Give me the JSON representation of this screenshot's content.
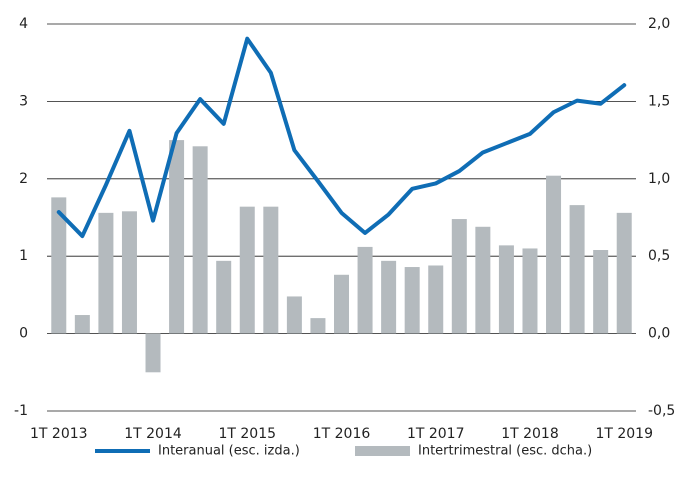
{
  "chart_data": {
    "type": "combo",
    "categories": [
      "1T 2013",
      null,
      null,
      null,
      "1T 2014",
      null,
      null,
      null,
      "1T 2015",
      null,
      null,
      null,
      "1T 2016",
      null,
      null,
      null,
      "1T 2017",
      null,
      null,
      null,
      "1T 2018",
      null,
      null,
      null,
      "1T 2019"
    ],
    "series": [
      {
        "name": "Interanual (esc. izda.)",
        "type": "line",
        "axis": "y",
        "color": "#0f6db5",
        "values": [
          1.57,
          1.26,
          1.92,
          2.62,
          1.46,
          2.59,
          3.03,
          2.71,
          3.81,
          3.37,
          2.37,
          1.97,
          1.56,
          1.3,
          1.54,
          1.87,
          1.94,
          2.1,
          2.34,
          2.46,
          2.58,
          2.86,
          3.01,
          2.97,
          3.21
        ]
      },
      {
        "name": "Intertrimestral (esc. dcha.)",
        "type": "bar",
        "axis": "y2",
        "color": "#b4babe",
        "values": [
          0.88,
          0.12,
          0.78,
          0.79,
          -0.25,
          1.25,
          1.21,
          0.47,
          0.82,
          0.82,
          0.24,
          0.1,
          0.38,
          0.56,
          0.47,
          0.43,
          0.44,
          0.74,
          0.69,
          0.57,
          0.55,
          1.02,
          0.83,
          0.54,
          0.78
        ]
      }
    ],
    "ylim": [
      -1,
      4
    ],
    "yticks": [
      -1,
      0,
      1,
      2,
      3,
      4
    ],
    "y2lim": [
      -0.5,
      2
    ],
    "y2ticks": [
      {
        "value": -0.5,
        "label": "-0,5"
      },
      {
        "value": 0,
        "label": "0,0"
      },
      {
        "value": 0.5,
        "label": "0,5"
      },
      {
        "value": 1,
        "label": "1,0"
      },
      {
        "value": 1.5,
        "label": "1,5"
      },
      {
        "value": 2,
        "label": "2,0"
      }
    ],
    "grid": true,
    "legend": "bottom"
  }
}
